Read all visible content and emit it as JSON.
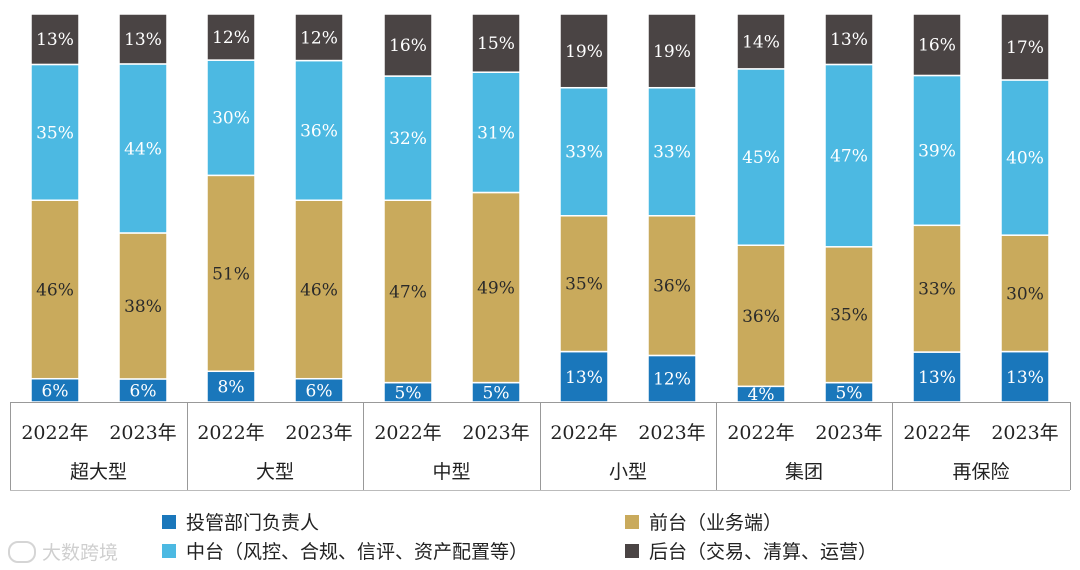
{
  "colors": {
    "front": "#C9AA5C",
    "mid": "#4CB9E2",
    "back": "#4A4444",
    "head": "#1A77BB"
  },
  "chart_data": {
    "type": "bar",
    "stacked": true,
    "normalized": true,
    "groups": [
      "超大型",
      "大型",
      "中型",
      "小型",
      "集团",
      "再保险"
    ],
    "years": [
      "2022年",
      "2023年"
    ],
    "categories": [
      "超大型 2022年",
      "超大型 2023年",
      "大型 2022年",
      "大型 2023年",
      "中型 2022年",
      "中型 2023年",
      "小型 2022年",
      "小型 2023年",
      "集团 2022年",
      "集团 2023年",
      "再保险 2022年",
      "再保险 2023年"
    ],
    "series": [
      {
        "name": "投管部门负责人",
        "key": "head",
        "values": [
          6,
          6,
          8,
          6,
          5,
          5,
          13,
          12,
          4,
          5,
          13,
          13
        ]
      },
      {
        "name": "前台（业务端）",
        "key": "front",
        "values": [
          46,
          38,
          51,
          46,
          47,
          49,
          35,
          36,
          36,
          35,
          33,
          30
        ]
      },
      {
        "name": "中台（风控、合规、信评、资产配置等）",
        "key": "mid",
        "values": [
          35,
          44,
          30,
          36,
          32,
          31,
          33,
          33,
          45,
          47,
          39,
          40
        ]
      },
      {
        "name": "后台（交易、清算、运营）",
        "key": "back",
        "values": [
          13,
          13,
          12,
          12,
          16,
          15,
          19,
          19,
          14,
          13,
          16,
          17
        ]
      }
    ],
    "title": "",
    "xlabel": "",
    "ylabel": "",
    "legend_position": "bottom",
    "value_suffix": "%"
  },
  "legend": {
    "head": "投管部门负责人",
    "front": "前台（业务端）",
    "mid": "中台（风控、合规、信评、资产配置等）",
    "back": "后台（交易、清算、运营）"
  },
  "watermark": "大数跨境"
}
